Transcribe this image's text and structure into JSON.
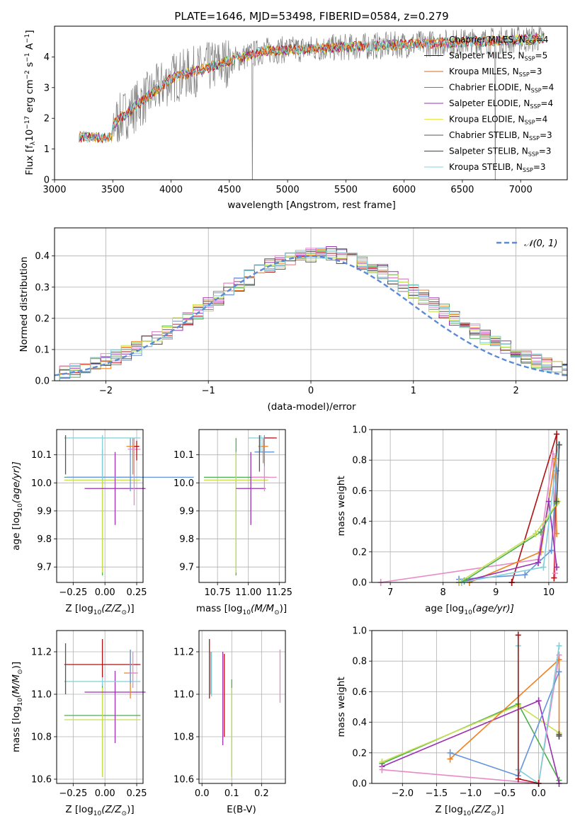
{
  "colors": {
    "s1": "#f0a030",
    "s2": "#1f1f1f",
    "s3": "#d96a1a",
    "s4": "#4a9a4a",
    "s5": "#9b30b0",
    "s6": "#e6e84a",
    "s7": "#555555",
    "s8": "#c01010",
    "s9": "#7fd6dc",
    "h_blue": "#6495dc",
    "h_orange": "#f08020",
    "h_green": "#4caf50",
    "h_red": "#b01010",
    "h_purple": "#9b30b0",
    "h_pink": "#e88ac8",
    "h_lime": "#c8e050",
    "h_teal": "#80cfd8",
    "h_dark": "#555555",
    "h_brown": "#a05020"
  },
  "chart_data": [
    {
      "type": "line",
      "title": "PLATE=1646, MJD=53498, FIBERID=0584, z=0.279",
      "xlabel": "wavelength [Angstrom, rest frame]",
      "ylabel_main": "Flux [f",
      "ylabel_lambda": "λ",
      "ylabel_rest": "10",
      "ylabel_exp1": "−17",
      "ylabel_unit": " erg cm",
      "ylabel_exp2": "−2",
      "ylabel_s": " s",
      "ylabel_exp3": "−1",
      "ylabel_A": " A",
      "ylabel_exp4": "−1",
      "ylabel_close": "]",
      "xlim": [
        3000,
        7400
      ],
      "ylim": [
        0,
        5
      ],
      "xticks": [
        "3000",
        "3500",
        "4000",
        "4500",
        "5000",
        "5500",
        "6000",
        "6500",
        "7000"
      ],
      "yticks": [
        "0",
        "1",
        "2",
        "3",
        "4"
      ],
      "legend": [
        {
          "name": "Chabrier MILES, N",
          "sub": "SSP",
          "val": "=4",
          "color": "s1"
        },
        {
          "name": "Salpeter MILES, N",
          "sub": "SSP",
          "val": "=5",
          "color": "s2"
        },
        {
          "name": "Kroupa MILES, N",
          "sub": "SSP",
          "val": "=3",
          "color": "s3"
        },
        {
          "name": "Chabrier ELODIE, N",
          "sub": "SSP",
          "val": "=4",
          "color": "s4"
        },
        {
          "name": "Salpeter ELODIE, N",
          "sub": "SSP",
          "val": "=4",
          "color": "s5"
        },
        {
          "name": "Kroupa ELODIE, N",
          "sub": "SSP",
          "val": "=4",
          "color": "s6"
        },
        {
          "name": "Chabrier STELIB, N",
          "sub": "SSP",
          "val": "=3",
          "color": "s7"
        },
        {
          "name": "Salpeter STELIB, N",
          "sub": "SSP",
          "val": "=3",
          "color": "s8"
        },
        {
          "name": "Kroupa STELIB, N",
          "sub": "SSP",
          "val": "=3",
          "color": "s9"
        }
      ]
    },
    {
      "type": "histogram",
      "xlabel": "(data-model)/error",
      "ylabel": "Normed distribution",
      "xlim": [
        -2.5,
        2.5
      ],
      "ylim": [
        0,
        0.49
      ],
      "xticks": [
        {
          "v": -2,
          "t": "−2"
        },
        {
          "v": -1,
          "t": "−1"
        },
        {
          "v": 0,
          "t": "0"
        },
        {
          "v": 1,
          "t": "1"
        },
        {
          "v": 2,
          "t": "2"
        }
      ],
      "yticks": [
        {
          "v": 0,
          "t": "0.0"
        },
        {
          "v": 0.1,
          "t": "0.1"
        },
        {
          "v": 0.2,
          "t": "0.2"
        },
        {
          "v": 0.3,
          "t": "0.3"
        },
        {
          "v": 0.4,
          "t": "0.4"
        }
      ],
      "legend_label": "𝒩(0, 1)",
      "bin_width": 0.1
    },
    {
      "type": "scatter",
      "xlabel": "Z [log",
      "xlabel_sub": "10",
      "xlabel_rest": "(Z/Z",
      "xlabel_sun": "⊙",
      "xlabel_end": ")]",
      "ylabel": "age  [log",
      "ylabel_sub": "10",
      "ylabel_rest": "(age/yr)]",
      "xlim": [
        -0.38,
        0.3
      ],
      "ylim": [
        9.645,
        10.19
      ],
      "xticks": [
        {
          "v": -0.25,
          "t": "−0.25"
        },
        {
          "v": 0.0,
          "t": "0.00"
        },
        {
          "v": 0.25,
          "t": "0.25"
        }
      ],
      "yticks": [
        {
          "v": 9.7,
          "t": "9.7"
        },
        {
          "v": 9.8,
          "t": "9.8"
        },
        {
          "v": 9.9,
          "t": "9.9"
        },
        {
          "v": 10.0,
          "t": "10.0"
        },
        {
          "v": 10.1,
          "t": "10.1"
        }
      ],
      "points": [
        {
          "x": -0.02,
          "y": 10.02,
          "xerr": 0.3,
          "yerr_lo": 0.35,
          "yerr_hi": 0.1,
          "c": "h_green"
        },
        {
          "x": -0.02,
          "y": 10.01,
          "xerr": 0.3,
          "yerr_lo": 0.33,
          "yerr_hi": 0.1,
          "c": "h_lime"
        },
        {
          "x": 0.08,
          "y": 9.98,
          "xerr": 0.24,
          "yerr_lo": 0.13,
          "yerr_hi": 0.13,
          "c": "h_purple"
        },
        {
          "x": 0.2,
          "y": 10.02,
          "xerr": 0.5,
          "yerr_lo": 0.05,
          "yerr_hi": 0.14,
          "c": "h_blue"
        },
        {
          "x": 0.22,
          "y": 10.13,
          "xerr": 0.05,
          "yerr_lo": 0.1,
          "yerr_hi": 0.03,
          "c": "h_orange"
        },
        {
          "x": 0.23,
          "y": 10.12,
          "xerr": 0.05,
          "yerr_lo": 0.2,
          "yerr_hi": 0.04,
          "c": "h_pink"
        },
        {
          "x": -0.02,
          "y": 10.16,
          "xerr": 0.3,
          "yerr_lo": 0.15,
          "yerr_hi": 0.01,
          "c": "h_teal"
        },
        {
          "x": -0.31,
          "y": 10.16,
          "xerr": 0.0,
          "yerr_lo": 0.13,
          "yerr_hi": 0.01,
          "c": "h_dark"
        },
        {
          "x": 0.25,
          "y": 10.13,
          "xerr": 0.02,
          "yerr_lo": 0.05,
          "yerr_hi": 0.02,
          "c": "h_red"
        }
      ]
    },
    {
      "type": "scatter",
      "xlabel": "mass [log",
      "xlabel_sub": "10",
      "xlabel_rest": "(M/M",
      "xlabel_sun": "⊙",
      "xlabel_end": ")]",
      "xlim": [
        10.6,
        11.3
      ],
      "ylim": [
        9.645,
        10.19
      ],
      "xticks": [
        {
          "v": 10.75,
          "t": "10.75"
        },
        {
          "v": 11.0,
          "t": "11.00"
        },
        {
          "v": 11.25,
          "t": "11.25"
        }
      ],
      "yticks": [
        {
          "v": 9.7,
          "t": "9.7"
        },
        {
          "v": 9.8,
          "t": "9.8"
        },
        {
          "v": 9.9,
          "t": "9.9"
        },
        {
          "v": 10.0,
          "t": "10.0"
        },
        {
          "v": 10.1,
          "t": "10.1"
        }
      ],
      "points": [
        {
          "x": 10.9,
          "y": 10.02,
          "xerr": 0.26,
          "yerr_lo": 0.35,
          "yerr_hi": 0.14,
          "c": "h_green"
        },
        {
          "x": 10.9,
          "y": 10.01,
          "xerr": 0.26,
          "yerr_lo": 0.33,
          "yerr_hi": 0.1,
          "c": "h_lime"
        },
        {
          "x": 11.02,
          "y": 9.98,
          "xerr": 0.12,
          "yerr_lo": 0.13,
          "yerr_hi": 0.13,
          "c": "h_purple"
        },
        {
          "x": 11.13,
          "y": 10.02,
          "xerr": 0.1,
          "yerr_lo": 0.05,
          "yerr_hi": 0.04,
          "c": "h_pink"
        },
        {
          "x": 11.13,
          "y": 10.11,
          "xerr": 0.08,
          "yerr_lo": 0.05,
          "yerr_hi": 0.06,
          "c": "h_blue"
        },
        {
          "x": 11.12,
          "y": 10.13,
          "xerr": 0.04,
          "yerr_lo": 0.06,
          "yerr_hi": 0.03,
          "c": "h_orange"
        },
        {
          "x": 11.1,
          "y": 10.16,
          "xerr": 0.1,
          "yerr_lo": 0.05,
          "yerr_hi": 0.01,
          "c": "h_teal"
        },
        {
          "x": 11.18,
          "y": 10.16,
          "xerr": 0.05,
          "yerr_lo": 0.0,
          "yerr_hi": 0.0,
          "c": "h_red"
        },
        {
          "x": 11.09,
          "y": 10.16,
          "xerr": 0.0,
          "yerr_lo": 0.12,
          "yerr_hi": 0.01,
          "c": "h_dark"
        }
      ]
    },
    {
      "type": "line",
      "xlabel": "age  [log",
      "xlabel_sub": "10",
      "xlabel_rest": "(age/yr)]",
      "ylabel": "mass weight",
      "xlim": [
        6.65,
        10.35
      ],
      "ylim": [
        0,
        1
      ],
      "xticks": [
        {
          "v": 7,
          "t": "7"
        },
        {
          "v": 8,
          "t": "8"
        },
        {
          "v": 9,
          "t": "9"
        },
        {
          "v": 10,
          "t": "10"
        }
      ],
      "yticks": [
        {
          "v": 0,
          "t": "0.0"
        },
        {
          "v": 0.2,
          "t": "0.2"
        },
        {
          "v": 0.4,
          "t": "0.4"
        },
        {
          "v": 0.6,
          "t": "0.6"
        },
        {
          "v": 0.8,
          "t": "0.8"
        },
        {
          "v": 1.0,
          "t": "1.0"
        }
      ],
      "series": [
        {
          "c": "h_red",
          "x": [
            9.3,
            9.3,
            10.15,
            10.1
          ],
          "y": [
            0.0,
            0.0,
            0.97,
            0.03
          ]
        },
        {
          "c": "h_pink",
          "x": [
            6.82,
            9.8,
            10.08,
            10.12
          ],
          "y": [
            0.0,
            0.15,
            0.84,
            0.06
          ]
        },
        {
          "c": "h_orange",
          "x": [
            8.5,
            9.85,
            10.12,
            10.15
          ],
          "y": [
            0.0,
            0.2,
            0.81,
            0.32
          ]
        },
        {
          "c": "h_blue",
          "x": [
            8.3,
            9.55,
            10.05,
            10.15
          ],
          "y": [
            0.02,
            0.05,
            0.21,
            0.73
          ]
        },
        {
          "c": "h_purple",
          "x": [
            8.3,
            9.8,
            10.0,
            10.15
          ],
          "y": [
            0.0,
            0.13,
            0.53,
            0.1
          ]
        },
        {
          "c": "h_green",
          "x": [
            8.4,
            9.85,
            10.15
          ],
          "y": [
            0.01,
            0.33,
            0.52
          ]
        },
        {
          "c": "h_lime",
          "x": [
            8.3,
            9.75,
            10.18
          ],
          "y": [
            0.0,
            0.32,
            0.53
          ]
        },
        {
          "c": "h_teal",
          "x": [
            8.35,
            9.9,
            10.18
          ],
          "y": [
            0.0,
            0.1,
            0.9
          ]
        },
        {
          "c": "h_dark",
          "x": [
            10.2,
            10.15
          ],
          "y": [
            0.9,
            0.53
          ]
        }
      ]
    },
    {
      "type": "scatter",
      "xlabel": "Z [log",
      "xlabel_sub": "10",
      "xlabel_rest": "(Z/Z",
      "xlabel_sun": "⊙",
      "xlabel_end": ")]",
      "ylabel": "mass [log",
      "ylabel_sub": "10",
      "ylabel_rest": "(M/M",
      "ylabel_sun": "⊙",
      "ylabel_end": ")]",
      "xlim": [
        -0.38,
        0.3
      ],
      "ylim": [
        10.58,
        11.3
      ],
      "xticks": [
        {
          "v": -0.25,
          "t": "−0.25"
        },
        {
          "v": 0.0,
          "t": "0.00"
        },
        {
          "v": 0.25,
          "t": "0.25"
        }
      ],
      "yticks": [
        {
          "v": 10.6,
          "t": "10.6"
        },
        {
          "v": 10.8,
          "t": "10.8"
        },
        {
          "v": 11.0,
          "t": "11.0"
        },
        {
          "v": 11.2,
          "t": "11.2"
        }
      ],
      "points": [
        {
          "x": -0.02,
          "y": 10.9,
          "xerr": 0.3,
          "yerr_lo": 0.29,
          "yerr_hi": 0.15,
          "c": "h_green"
        },
        {
          "x": -0.02,
          "y": 10.88,
          "xerr": 0.3,
          "yerr_lo": 0.27,
          "yerr_hi": 0.15,
          "c": "h_lime"
        },
        {
          "x": 0.08,
          "y": 11.01,
          "xerr": 0.24,
          "yerr_lo": 0.24,
          "yerr_hi": 0.1,
          "c": "h_purple"
        },
        {
          "x": -0.02,
          "y": 11.14,
          "xerr": 0.3,
          "yerr_lo": 0.06,
          "yerr_hi": 0.12,
          "c": "h_red"
        },
        {
          "x": 0.2,
          "y": 11.1,
          "xerr": 0.05,
          "yerr_lo": 0.12,
          "yerr_hi": 0.11,
          "c": "h_orange"
        },
        {
          "x": 0.22,
          "y": 11.1,
          "xerr": 0.04,
          "yerr_lo": 0.07,
          "yerr_hi": 0.1,
          "c": "h_pink"
        },
        {
          "x": -0.02,
          "y": 11.06,
          "xerr": 0.3,
          "yerr_lo": 0.02,
          "yerr_hi": 0.02,
          "c": "h_teal"
        },
        {
          "x": 0.2,
          "y": 11.11,
          "xerr": 0.0,
          "yerr_lo": 0.06,
          "yerr_hi": 0.1,
          "c": "h_blue"
        },
        {
          "x": -0.31,
          "y": 11.1,
          "xerr": 0.0,
          "yerr_lo": 0.1,
          "yerr_hi": 0.14,
          "c": "h_dark"
        }
      ]
    },
    {
      "type": "scatter",
      "xlabel": "E(B-V)",
      "xlim": [
        -0.01,
        0.28
      ],
      "ylim": [
        10.58,
        11.3
      ],
      "xticks": [
        {
          "v": 0.0,
          "t": "0.0"
        },
        {
          "v": 0.1,
          "t": "0.1"
        },
        {
          "v": 0.2,
          "t": "0.2"
        }
      ],
      "yticks": [
        {
          "v": 10.6,
          "t": "10.6"
        },
        {
          "v": 10.8,
          "t": "10.8"
        },
        {
          "v": 11.0,
          "t": "11.0"
        },
        {
          "v": 11.2,
          "t": "11.2"
        }
      ],
      "points": [
        {
          "x": 0.025,
          "y": 11.1,
          "yerr_lo": 0.12,
          "yerr_hi": 0.16,
          "c": "h_red"
        },
        {
          "x": 0.03,
          "y": 11.1,
          "yerr_lo": 0.1,
          "yerr_hi": 0.1,
          "c": "h_blue"
        },
        {
          "x": 0.032,
          "y": 11.1,
          "yerr_lo": 0.11,
          "yerr_hi": 0.1,
          "c": "h_teal"
        },
        {
          "x": 0.07,
          "y": 11.0,
          "yerr_lo": 0.24,
          "yerr_hi": 0.2,
          "c": "h_purple"
        },
        {
          "x": 0.075,
          "y": 11.0,
          "yerr_lo": 0.2,
          "yerr_hi": 0.19,
          "c": "h_red"
        },
        {
          "x": 0.1,
          "y": 10.9,
          "yerr_lo": 0.29,
          "yerr_hi": 0.17,
          "c": "h_green"
        },
        {
          "x": 0.1,
          "y": 10.88,
          "yerr_lo": 0.27,
          "yerr_hi": 0.15,
          "c": "h_lime"
        },
        {
          "x": 0.262,
          "y": 11.1,
          "yerr_lo": 0.14,
          "yerr_hi": 0.11,
          "c": "h_pink"
        }
      ]
    },
    {
      "type": "line",
      "xlabel": "Z [log",
      "xlabel_sub": "10",
      "xlabel_rest": "(Z/Z",
      "xlabel_sun": "⊙",
      "xlabel_end": ")]",
      "ylabel": "mass weight",
      "xlim": [
        -2.45,
        0.42
      ],
      "ylim": [
        0,
        1
      ],
      "xticks": [
        {
          "v": -2.0,
          "t": "−2.0"
        },
        {
          "v": -1.5,
          "t": "−1.5"
        },
        {
          "v": -1.0,
          "t": "−1.0"
        },
        {
          "v": -0.5,
          "t": "−0.5"
        },
        {
          "v": 0.0,
          "t": "0.0"
        }
      ],
      "yticks": [
        {
          "v": 0,
          "t": "0.0"
        },
        {
          "v": 0.2,
          "t": "0.2"
        },
        {
          "v": 0.4,
          "t": "0.4"
        },
        {
          "v": 0.6,
          "t": "0.6"
        },
        {
          "v": 0.8,
          "t": "0.8"
        },
        {
          "v": 1.0,
          "t": "1.0"
        }
      ],
      "series": [
        {
          "c": "h_green",
          "x": [
            -2.3,
            -0.3,
            0.3
          ],
          "y": [
            0.13,
            0.52,
            0.02
          ]
        },
        {
          "c": "h_lime",
          "x": [
            -2.3,
            -0.3,
            0.3
          ],
          "y": [
            0.14,
            0.51,
            0.33
          ]
        },
        {
          "c": "h_purple",
          "x": [
            -2.3,
            0.0,
            0.3
          ],
          "y": [
            0.11,
            0.54,
            0.0
          ]
        },
        {
          "c": "h_pink",
          "x": [
            -2.3,
            0.0,
            0.3
          ],
          "y": [
            0.09,
            0.0,
            0.84
          ]
        },
        {
          "c": "h_orange",
          "x": [
            -1.3,
            0.3,
            0.3
          ],
          "y": [
            0.16,
            0.81,
            0.32
          ]
        },
        {
          "c": "h_blue",
          "x": [
            -1.3,
            -0.3,
            0.3
          ],
          "y": [
            0.2,
            0.05,
            0.73
          ]
        },
        {
          "c": "h_teal",
          "x": [
            -0.3,
            -0.3,
            0.0,
            0.3
          ],
          "y": [
            0.9,
            0.09,
            0.0,
            0.9
          ]
        },
        {
          "c": "h_red",
          "x": [
            -0.3,
            -0.3,
            0.0
          ],
          "y": [
            0.97,
            0.03,
            0.0
          ]
        },
        {
          "c": "h_dark",
          "x": [
            0.3,
            0.3
          ],
          "y": [
            0.31,
            0.32
          ]
        }
      ]
    }
  ]
}
